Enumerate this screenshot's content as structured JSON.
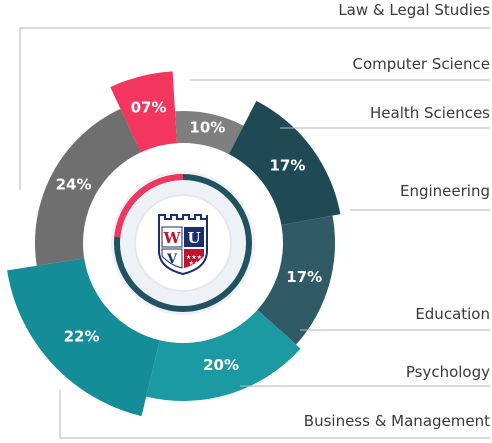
{
  "chart_data": {
    "type": "pie",
    "style": "exploded donut with per-slice radius",
    "title": "",
    "categories": [
      "Law & Legal Studies",
      "Computer Science",
      "Health Sciences",
      "Engineering",
      "Education",
      "Psychology",
      "Business & Management"
    ],
    "values": [
      24,
      7,
      10,
      17,
      17,
      20,
      22
    ],
    "value_labels": [
      "24%",
      "07%",
      "10%",
      "17%",
      "17%",
      "20%",
      "22%"
    ],
    "colors": [
      "#6f6f6f",
      "#f2365e",
      "#7f7f7f",
      "#1f4a55",
      "#2f5a66",
      "#1b9aa3",
      "#148d98"
    ],
    "legend": "leader lines to labels on the right"
  },
  "center_badge": {
    "letters": [
      "W",
      "U",
      "V"
    ],
    "colors": {
      "navy": "#1a2f6e",
      "red": "#c0122c",
      "teal": "#1b9aa3"
    }
  }
}
